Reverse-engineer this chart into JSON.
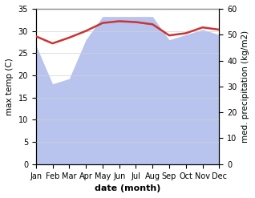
{
  "months": [
    "Jan",
    "Feb",
    "Mar",
    "Apr",
    "May",
    "Jun",
    "Jul",
    "Aug",
    "Sep",
    "Oct",
    "Nov",
    "Dec"
  ],
  "month_x": [
    1,
    2,
    3,
    4,
    5,
    6,
    7,
    8,
    9,
    10,
    11,
    12
  ],
  "temperature": [
    28.8,
    27.2,
    28.5,
    30.0,
    31.8,
    32.2,
    32.0,
    31.5,
    29.0,
    29.5,
    30.8,
    30.3
  ],
  "precipitation": [
    46,
    31,
    33,
    48,
    57,
    57,
    57,
    57,
    48,
    50,
    52,
    50
  ],
  "temp_color": "#cc3333",
  "precip_color": "#b8c4ed",
  "temp_ylim": [
    0,
    35
  ],
  "precip_ylim": [
    0,
    60
  ],
  "temp_yticks": [
    0,
    5,
    10,
    15,
    20,
    25,
    30,
    35
  ],
  "precip_yticks": [
    0,
    10,
    20,
    30,
    40,
    50,
    60
  ],
  "ylabel_left": "max temp (C)",
  "ylabel_right": "med. precipitation (kg/m2)",
  "xlabel": "date (month)",
  "fig_width": 3.18,
  "fig_height": 2.47,
  "dpi": 100
}
